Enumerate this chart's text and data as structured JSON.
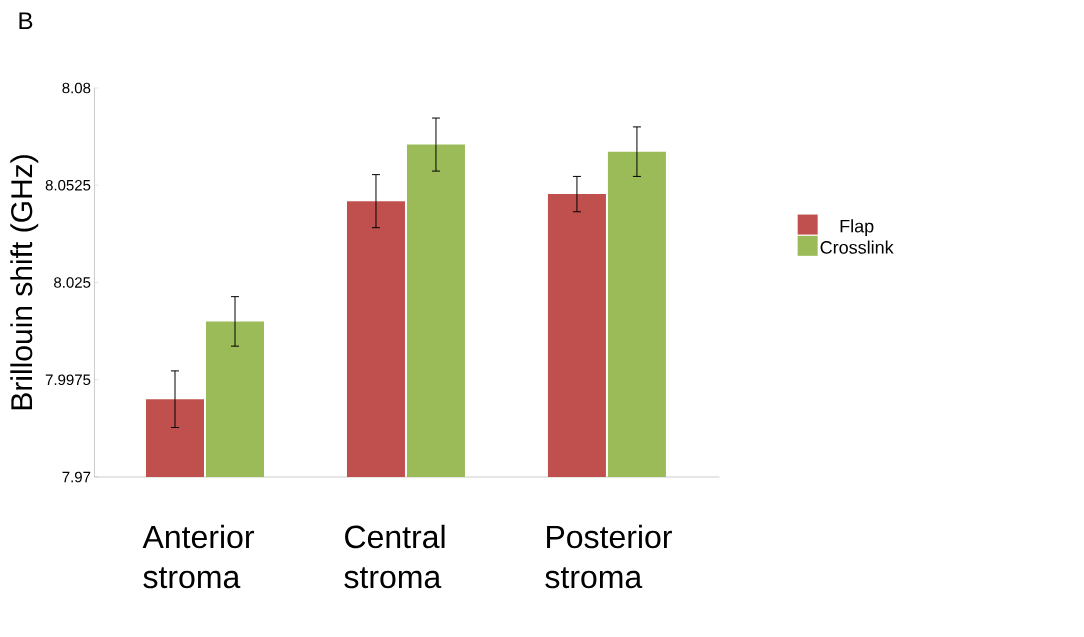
{
  "chart_data": {
    "type": "bar",
    "annotations": [
      "B"
    ],
    "ylabel": "Brillouin shift (GHz)",
    "categories": [
      "Anterior stroma",
      "Central stroma",
      "Posterior stroma"
    ],
    "series": [
      {
        "name": "Flap",
        "color": "#c0504d",
        "values": [
          7.992,
          8.048,
          8.05
        ],
        "errors": [
          0.008,
          0.0075,
          0.005
        ]
      },
      {
        "name": "Crosslink",
        "color": "#9bbb59",
        "values": [
          8.014,
          8.064,
          8.062
        ],
        "errors": [
          0.007,
          0.0075,
          0.007
        ]
      }
    ],
    "ylim": [
      7.97,
      8.08
    ],
    "yticks": [
      7.97,
      7.9975,
      8.025,
      8.0525,
      8.08
    ],
    "legend": "right"
  }
}
